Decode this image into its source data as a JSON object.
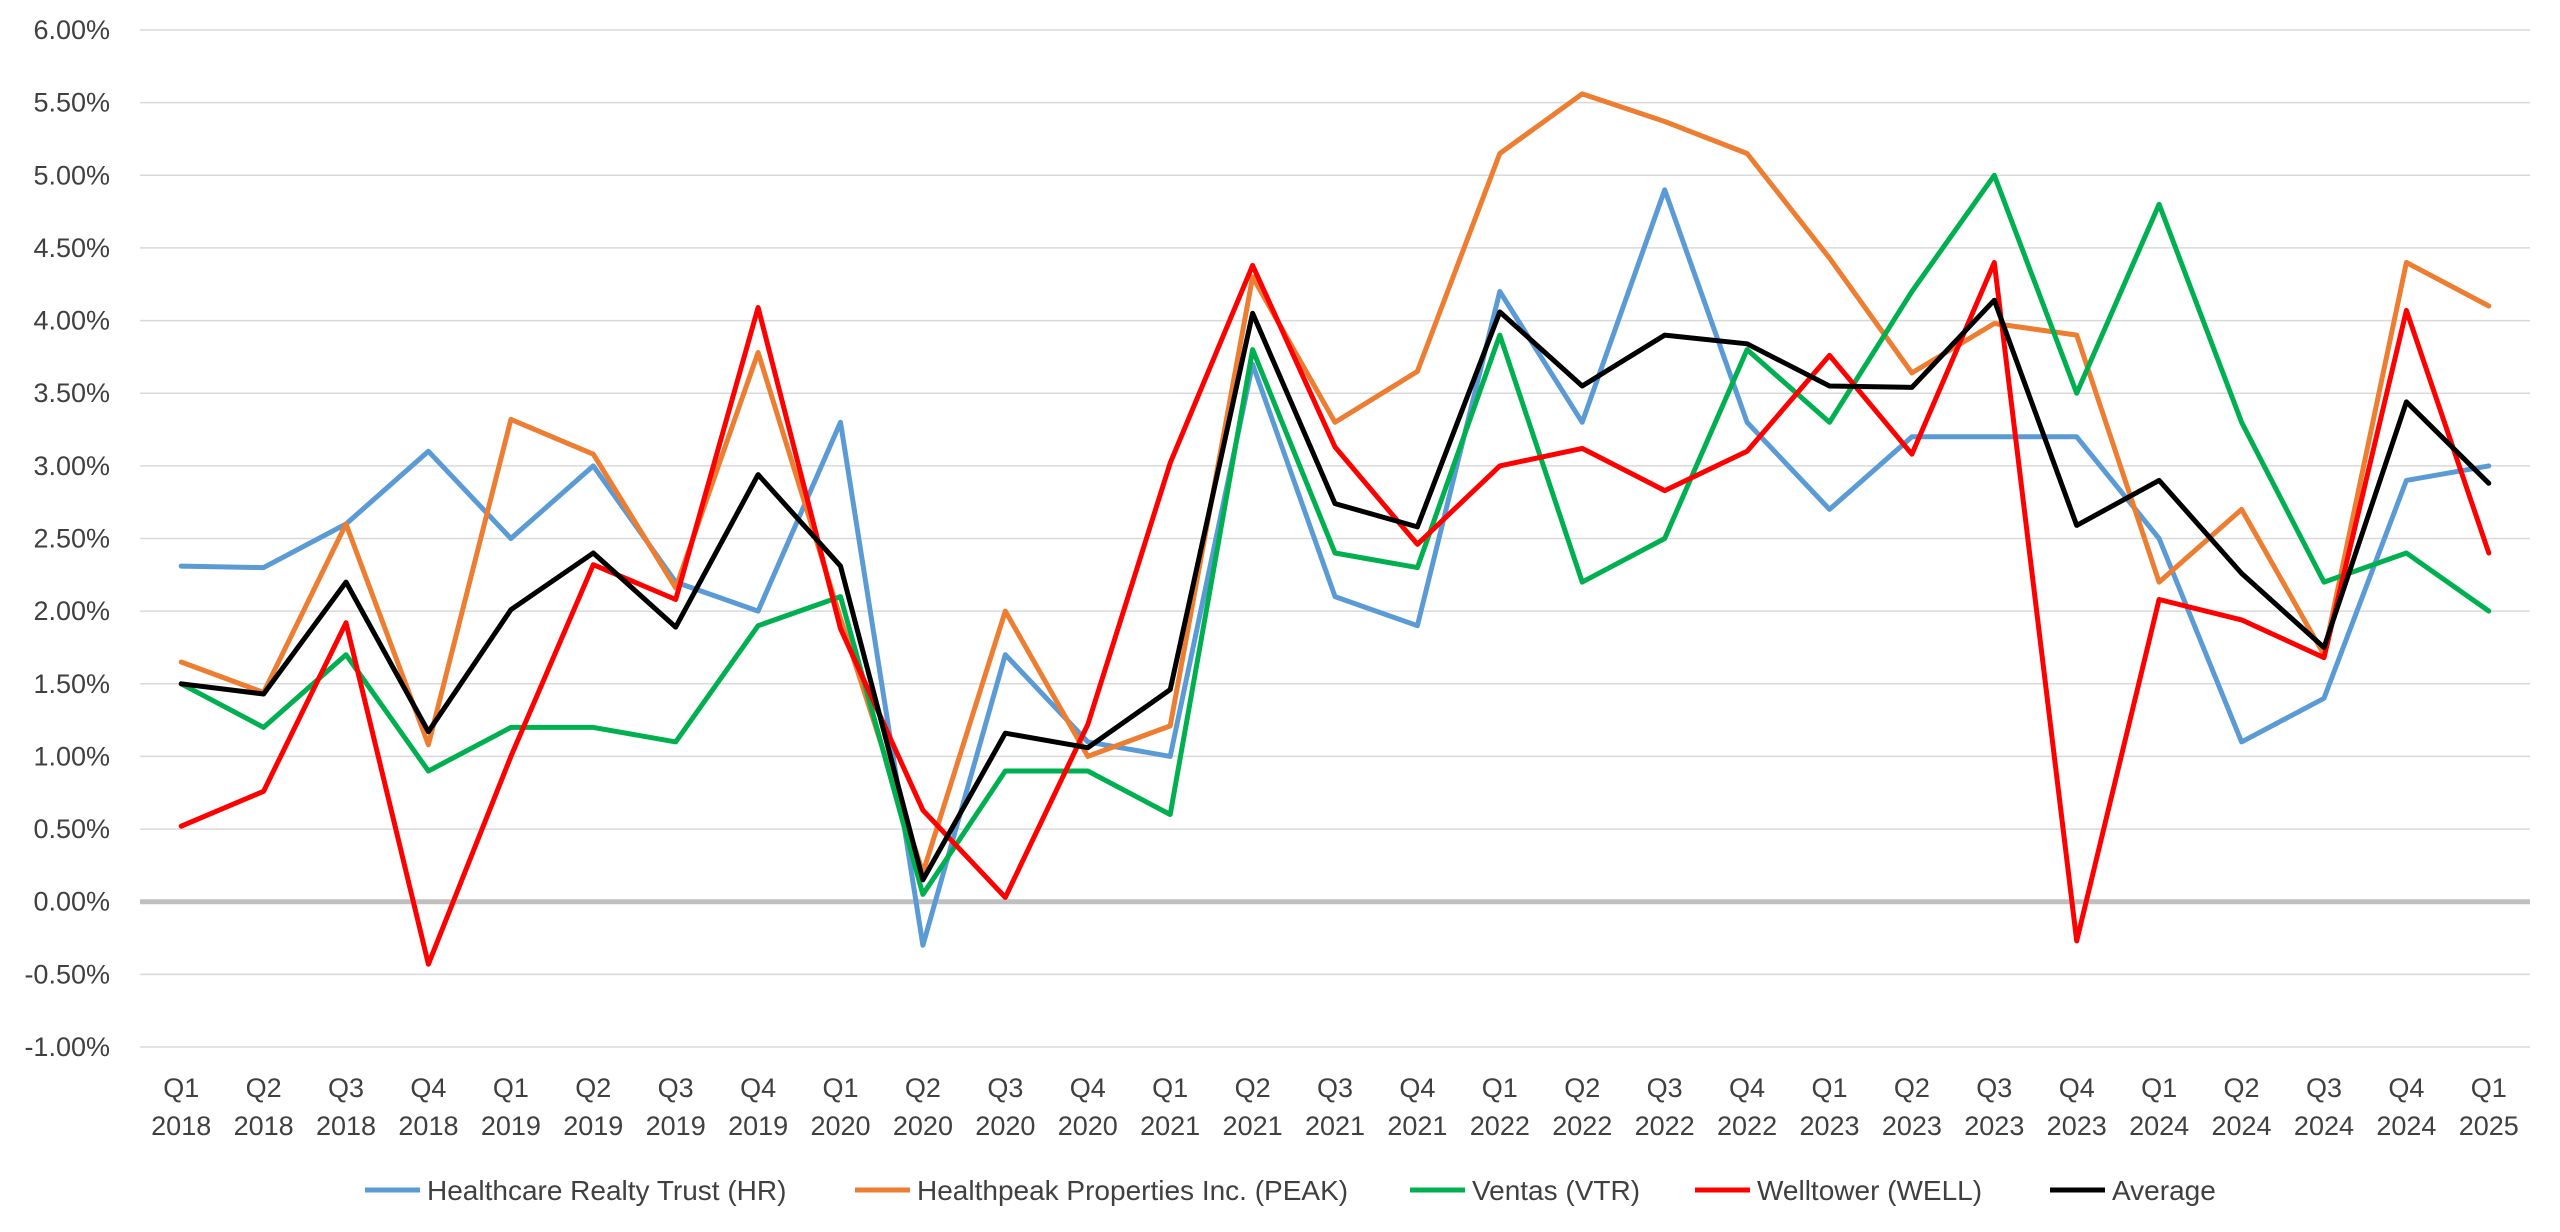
{
  "chart_data": {
    "type": "line",
    "y_format": "percent_2dp",
    "ylim": [
      -1.0,
      6.0
    ],
    "ytick_step": 0.5,
    "grid": true,
    "legend_position": "bottom",
    "categories": [
      [
        "Q1",
        "2018"
      ],
      [
        "Q2",
        "2018"
      ],
      [
        "Q3",
        "2018"
      ],
      [
        "Q4",
        "2018"
      ],
      [
        "Q1",
        "2019"
      ],
      [
        "Q2",
        "2019"
      ],
      [
        "Q3",
        "2019"
      ],
      [
        "Q4",
        "2019"
      ],
      [
        "Q1",
        "2020"
      ],
      [
        "Q2",
        "2020"
      ],
      [
        "Q3",
        "2020"
      ],
      [
        "Q4",
        "2020"
      ],
      [
        "Q1",
        "2021"
      ],
      [
        "Q2",
        "2021"
      ],
      [
        "Q3",
        "2021"
      ],
      [
        "Q4",
        "2021"
      ],
      [
        "Q1",
        "2022"
      ],
      [
        "Q2",
        "2022"
      ],
      [
        "Q3",
        "2022"
      ],
      [
        "Q4",
        "2022"
      ],
      [
        "Q1",
        "2023"
      ],
      [
        "Q2",
        "2023"
      ],
      [
        "Q3",
        "2023"
      ],
      [
        "Q4",
        "2023"
      ],
      [
        "Q1",
        "2024"
      ],
      [
        "Q2",
        "2024"
      ],
      [
        "Q3",
        "2024"
      ],
      [
        "Q4",
        "2024"
      ],
      [
        "Q1",
        "2025"
      ]
    ],
    "series": [
      {
        "name": "Healthcare Realty Trust (HR)",
        "color": "#5B9BD5",
        "values": [
          2.31,
          2.3,
          2.6,
          3.1,
          2.5,
          3.0,
          2.2,
          2.0,
          3.3,
          -0.3,
          1.7,
          1.1,
          1.0,
          3.7,
          2.1,
          1.9,
          4.2,
          3.3,
          4.9,
          3.3,
          2.7,
          3.2,
          3.2,
          3.2,
          2.5,
          1.1,
          1.4,
          2.9,
          3.0
        ]
      },
      {
        "name": "Healthpeak Properties Inc. (PEAK)",
        "color": "#ED7D31",
        "values": [
          1.65,
          1.44,
          2.6,
          1.08,
          3.32,
          3.08,
          2.16,
          3.78,
          1.95,
          0.2,
          2.0,
          1.0,
          1.21,
          4.3,
          3.3,
          3.65,
          5.15,
          5.56,
          5.37,
          5.15,
          4.43,
          3.64,
          3.98,
          3.9,
          2.2,
          2.7,
          1.7,
          4.4,
          4.1
        ]
      },
      {
        "name": "Ventas (VTR)",
        "color": "#00B050",
        "values": [
          1.5,
          1.2,
          1.7,
          0.9,
          1.2,
          1.2,
          1.1,
          1.9,
          2.1,
          0.05,
          0.9,
          0.9,
          0.6,
          3.8,
          2.4,
          2.3,
          3.9,
          2.2,
          2.5,
          3.8,
          3.3,
          4.2,
          5.0,
          3.5,
          4.8,
          3.3,
          2.2,
          2.4,
          2.0
        ]
      },
      {
        "name": "Welltower (WELL)",
        "color": "#FF0000",
        "values": [
          0.52,
          0.76,
          1.92,
          -0.43,
          1.0,
          2.32,
          2.08,
          4.09,
          1.88,
          0.63,
          0.03,
          1.22,
          3.02,
          4.38,
          3.13,
          2.46,
          3.0,
          3.12,
          2.83,
          3.1,
          3.76,
          3.08,
          4.4,
          -0.27,
          2.08,
          1.94,
          1.68,
          4.07,
          2.4
        ]
      },
      {
        "name": "Average",
        "color": "#000000",
        "values": [
          1.5,
          1.43,
          2.2,
          1.17,
          2.01,
          2.4,
          1.89,
          2.94,
          2.31,
          0.15,
          1.16,
          1.06,
          1.46,
          4.05,
          2.74,
          2.58,
          4.06,
          3.55,
          3.9,
          3.84,
          3.55,
          3.54,
          4.14,
          2.59,
          2.9,
          2.26,
          1.75,
          3.44,
          2.88
        ]
      }
    ]
  }
}
